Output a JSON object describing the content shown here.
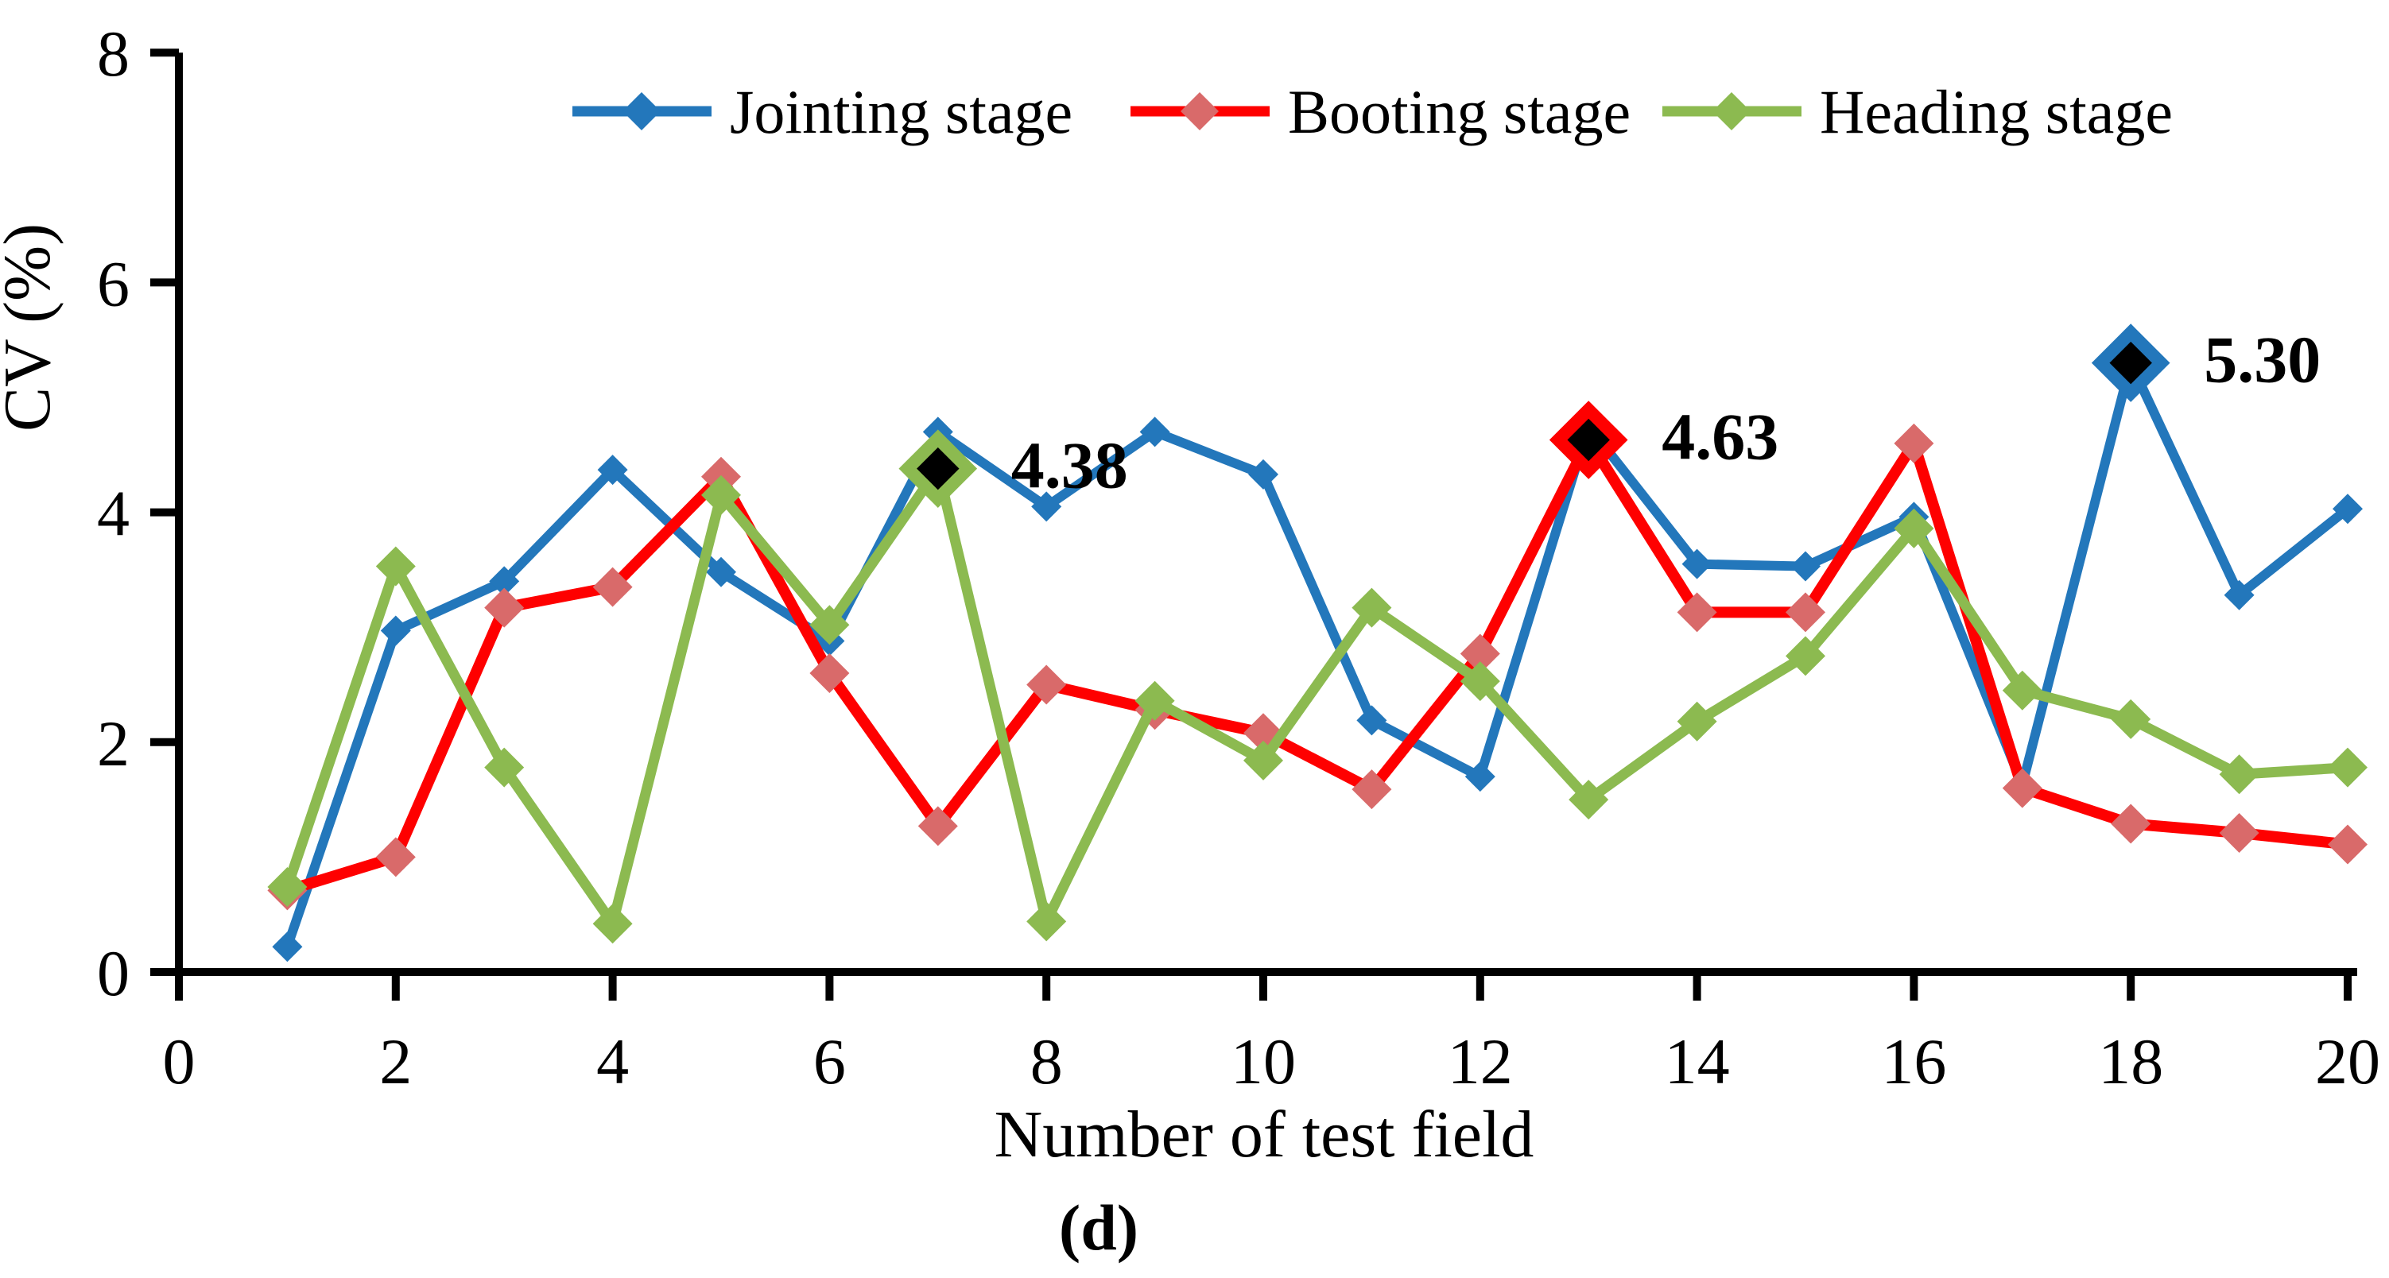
{
  "chart_data": {
    "type": "line",
    "title": "",
    "xlabel": "Number of test field",
    "ylabel": "CV (%)",
    "caption": "(d)",
    "xlim": [
      0,
      20
    ],
    "ylim": [
      0,
      8
    ],
    "x_ticks": [
      0,
      2,
      4,
      6,
      8,
      10,
      12,
      14,
      16,
      18,
      20
    ],
    "y_ticks": [
      0,
      2,
      4,
      6,
      8
    ],
    "grid": false,
    "legend_position": "top-center",
    "x": [
      1,
      2,
      3,
      4,
      5,
      6,
      7,
      8,
      9,
      10,
      11,
      12,
      13,
      14,
      15,
      16,
      17,
      18,
      19,
      20
    ],
    "series": [
      {
        "name": "Jointing stage",
        "color": "#2377BB",
        "marker_fill": "#2377BB",
        "marker": "diamond",
        "line_width": 12,
        "marker_size": 19,
        "values": [
          0.22,
          2.97,
          3.4,
          4.37,
          3.48,
          2.88,
          4.7,
          4.05,
          4.7,
          4.33,
          2.19,
          1.7,
          4.75,
          3.55,
          3.53,
          3.96,
          1.63,
          5.3,
          3.28,
          4.03
        ]
      },
      {
        "name": "Booting stage",
        "color": "#FE0000",
        "marker_fill": "#D96A6A",
        "marker": "diamond",
        "line_width": 14,
        "marker_size": 25,
        "values": [
          0.71,
          1.0,
          3.17,
          3.35,
          4.31,
          2.6,
          1.27,
          2.5,
          2.28,
          2.08,
          1.59,
          2.77,
          4.63,
          3.13,
          3.13,
          4.6,
          1.6,
          1.29,
          1.21,
          1.11
        ]
      },
      {
        "name": "Heading stage",
        "color": "#8CBA50",
        "marker_fill": "#8CBA50",
        "marker": "diamond",
        "line_width": 13,
        "marker_size": 25,
        "values": [
          0.74,
          3.53,
          1.78,
          0.42,
          4.15,
          3.02,
          4.38,
          0.44,
          2.36,
          1.84,
          3.17,
          2.53,
          1.5,
          2.18,
          2.75,
          3.86,
          2.45,
          2.2,
          1.72,
          1.78
        ]
      }
    ],
    "annotations": [
      {
        "label": "4.38",
        "series_index": 2,
        "x": 7,
        "value": 4.38
      },
      {
        "label": "4.63",
        "series_index": 1,
        "x": 13,
        "value": 4.63
      },
      {
        "label": "5.30",
        "series_index": 0,
        "x": 18,
        "value": 5.3
      }
    ]
  }
}
